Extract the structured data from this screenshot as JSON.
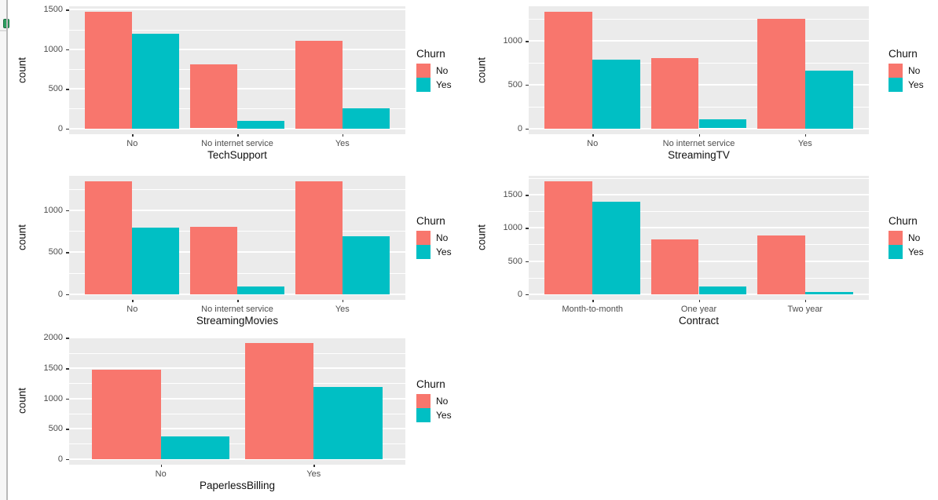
{
  "app": {
    "kind": "R ggplot2 plot grid of churn bar charts",
    "legend_title": "Churn",
    "series_names": [
      "No",
      "Yes"
    ],
    "colors": {
      "no": "#F8766D",
      "yes": "#00BFC4",
      "panel_bg": "#EBEBEB",
      "gridline": "#FFFFFF",
      "tick_text": "#4d4d4d",
      "title_text": "#111111",
      "green_mark": "#2d9e5f"
    }
  },
  "chart_data": [
    {
      "type": "bar",
      "title": "",
      "xlabel": "TechSupport",
      "ylabel": "count",
      "categories": [
        "No",
        "No internet service",
        "Yes"
      ],
      "series": [
        {
          "name": "No",
          "color": "#F8766D",
          "values": [
            1470,
            805,
            1105
          ]
        },
        {
          "name": "Yes",
          "color": "#00BFC4",
          "values": [
            1200,
            95,
            250
          ]
        }
      ],
      "yticks": [
        0,
        500,
        1000,
        1500
      ],
      "ylim": [
        0,
        1550
      ],
      "grid": true,
      "legend_title": "Churn",
      "legend_position": "right"
    },
    {
      "type": "bar",
      "title": "",
      "xlabel": "StreamingTV",
      "ylabel": "count",
      "categories": [
        "No",
        "No internet service",
        "Yes"
      ],
      "series": [
        {
          "name": "No",
          "color": "#F8766D",
          "values": [
            1330,
            805,
            1250
          ]
        },
        {
          "name": "Yes",
          "color": "#00BFC4",
          "values": [
            790,
            100,
            665
          ]
        }
      ],
      "yticks": [
        0,
        500,
        1000
      ],
      "ylim": [
        0,
        1400
      ],
      "grid": true,
      "legend_title": "Churn",
      "legend_position": "right"
    },
    {
      "type": "bar",
      "title": "",
      "xlabel": "StreamingMovies",
      "ylabel": "count",
      "categories": [
        "No",
        "No internet service",
        "Yes"
      ],
      "series": [
        {
          "name": "No",
          "color": "#F8766D",
          "values": [
            1340,
            805,
            1340
          ]
        },
        {
          "name": "Yes",
          "color": "#00BFC4",
          "values": [
            790,
            95,
            690
          ]
        }
      ],
      "yticks": [
        0,
        500,
        1000
      ],
      "ylim": [
        0,
        1410
      ],
      "grid": true,
      "legend_title": "Churn",
      "legend_position": "right"
    },
    {
      "type": "bar",
      "title": "",
      "xlabel": "Contract",
      "ylabel": "count",
      "categories": [
        "Month-to-month",
        "One year",
        "Two year"
      ],
      "series": [
        {
          "name": "No",
          "color": "#F8766D",
          "values": [
            1700,
            825,
            885
          ]
        },
        {
          "name": "Yes",
          "color": "#00BFC4",
          "values": [
            1395,
            120,
            35
          ]
        }
      ],
      "yticks": [
        0,
        500,
        1000,
        1500
      ],
      "ylim": [
        0,
        1790
      ],
      "grid": true,
      "legend_title": "Churn",
      "legend_position": "right"
    },
    {
      "type": "bar",
      "title": "",
      "xlabel": "PaperlessBilling",
      "ylabel": "count",
      "categories": [
        "No",
        "Yes"
      ],
      "series": [
        {
          "name": "No",
          "color": "#F8766D",
          "values": [
            1470,
            1910
          ]
        },
        {
          "name": "Yes",
          "color": "#00BFC4",
          "values": [
            370,
            1190
          ]
        }
      ],
      "yticks": [
        0,
        500,
        1000,
        1500,
        2000
      ],
      "ylim": [
        0,
        2010
      ],
      "grid": true,
      "legend_title": "Churn",
      "legend_position": "right"
    }
  ]
}
